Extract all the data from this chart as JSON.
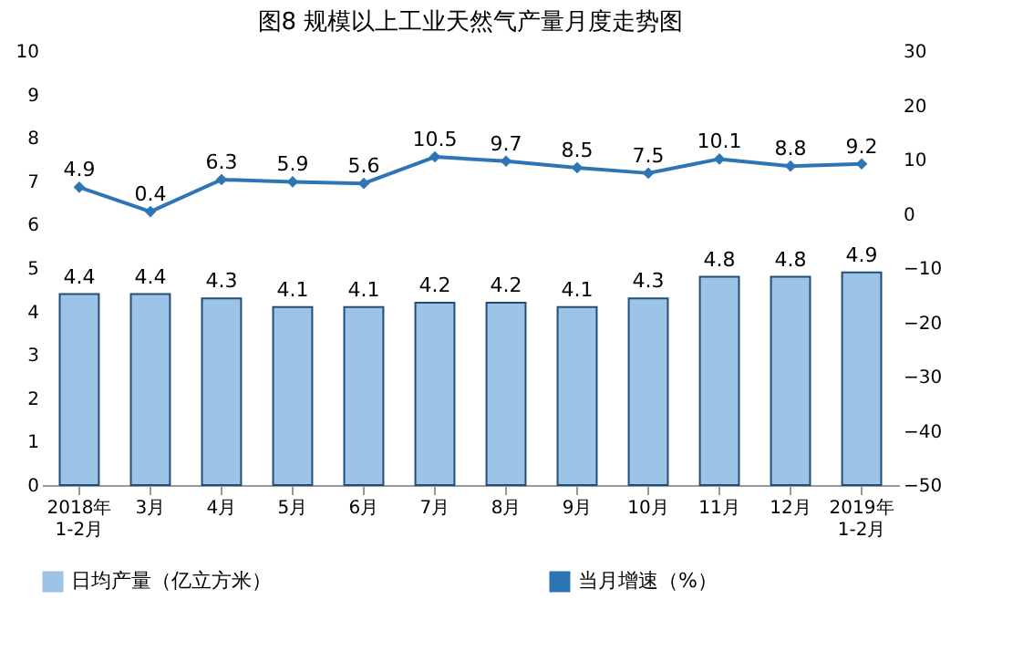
{
  "chart_data": {
    "type": "bar",
    "title": "图8  规模以上工业天然气产量月度走势图",
    "categories": [
      "2018年\n1-2月",
      "3月",
      "4月",
      "5月",
      "6月",
      "7月",
      "8月",
      "9月",
      "10月",
      "11月",
      "12月",
      "2019年\n1-2月"
    ],
    "series": [
      {
        "name": "日均产量（亿立方米）",
        "color": "#9dc3e6",
        "values": [
          4.4,
          4.4,
          4.3,
          4.1,
          4.1,
          4.2,
          4.2,
          4.1,
          4.3,
          4.8,
          4.8,
          4.9
        ]
      },
      {
        "name": "当月增速（%）",
        "type": "line",
        "axis": "y2",
        "color": "#2e75b6",
        "values": [
          4.9,
          0.4,
          6.3,
          5.9,
          5.6,
          10.5,
          9.7,
          8.5,
          7.5,
          10.1,
          8.8,
          9.2
        ]
      }
    ],
    "ylim": [
      0,
      10
    ],
    "yticks": [
      0,
      1,
      2,
      3,
      4,
      5,
      6,
      7,
      8,
      9,
      10
    ],
    "y2lim": [
      -50,
      30
    ],
    "y2ticks": [
      -50,
      -40,
      -30,
      -20,
      -10,
      0,
      10,
      20,
      30
    ],
    "data_labels": true,
    "legend": "bottom",
    "marker": "diamond",
    "grid": false
  }
}
